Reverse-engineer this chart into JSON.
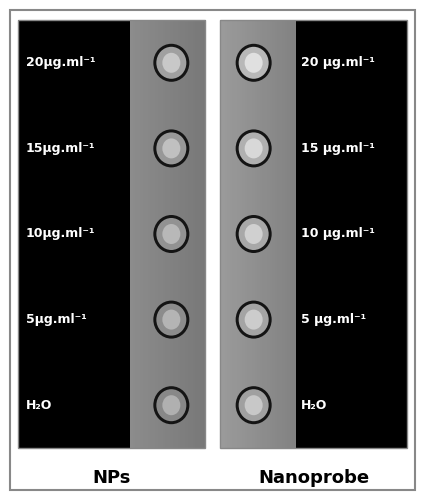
{
  "figure_bg": "#ffffff",
  "title_left": "NPs",
  "title_right": "Nanoprobe",
  "labels_left": [
    "20μg.ml⁻¹",
    "15μg.ml⁻¹",
    "10μg.ml⁻¹",
    "5μg.ml⁻¹",
    "H₂O"
  ],
  "labels_right": [
    "20 μg.ml⁻¹",
    "15 μg.ml⁻¹",
    "10 μg.ml⁻¹",
    "5 μg.ml⁻¹",
    "H₂O"
  ],
  "panel_border": "#888888",
  "outer_frame_color": "#888888",
  "left_black": "#000000",
  "left_gray": "#909090",
  "right_gray": "#909090",
  "right_black": "#000000",
  "circle_dark_ring": "#1c1c1c",
  "circle_mid_gray_np": "#999999",
  "circle_center_np": "#c8c8c8",
  "circle_mid_gray_nano": "#aaaaaa",
  "circle_center_nano": "#d8d8d8",
  "text_color_white": "#ffffff",
  "title_color": "#000000"
}
